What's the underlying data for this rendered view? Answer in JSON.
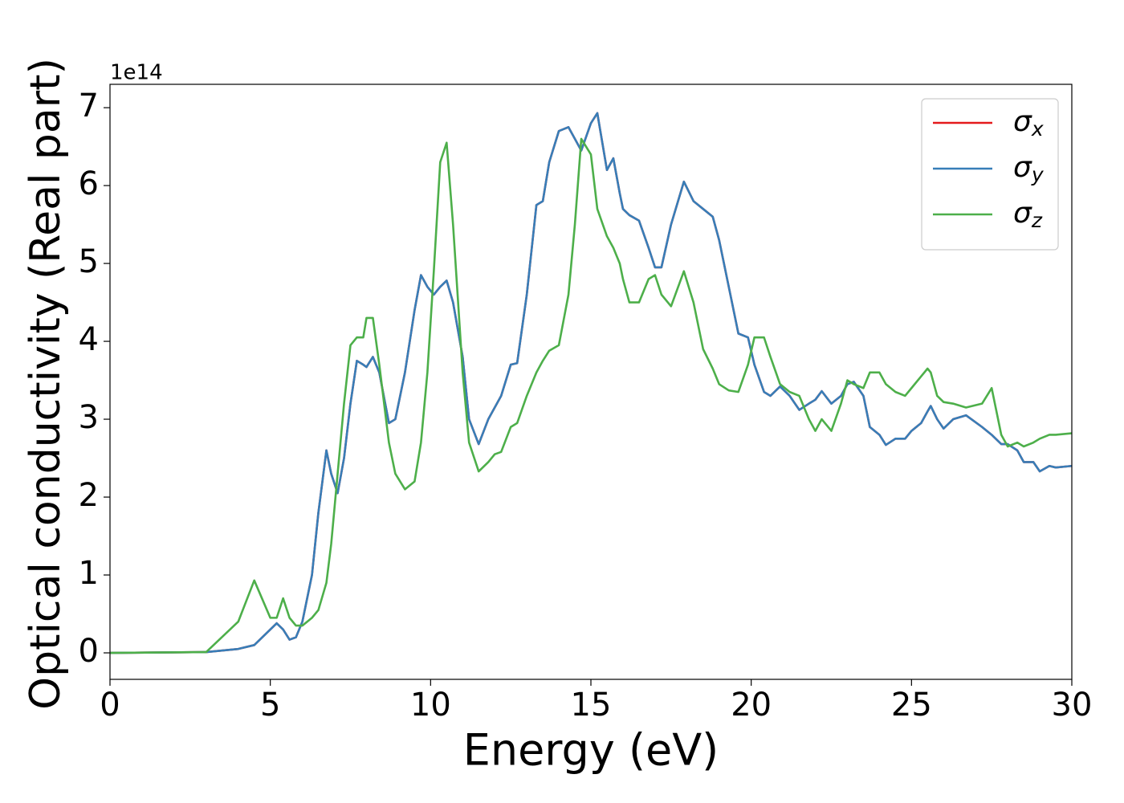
{
  "chart_data": {
    "type": "line",
    "xlabel": "Energy (eV)",
    "ylabel": "Optical conductivity (Real part)",
    "y_offset_label": "1e14",
    "xlim": [
      0,
      30
    ],
    "xticks": [
      0,
      5,
      10,
      15,
      20,
      25,
      30
    ],
    "ylim": [
      -0.34,
      7.3
    ],
    "yticks": [
      0,
      1,
      2,
      3,
      4,
      5,
      6,
      7
    ],
    "grid": false,
    "legend": "upper right",
    "x": [
      0,
      3,
      4,
      4.5,
      5,
      5.2,
      5.4,
      5.6,
      5.8,
      6,
      6.3,
      6.5,
      6.75,
      6.9,
      7.1,
      7.3,
      7.5,
      7.7,
      7.9,
      8.0,
      8.2,
      8.4,
      8.7,
      8.9,
      9.2,
      9.5,
      9.7,
      9.9,
      10.1,
      10.3,
      10.5,
      10.7,
      11,
      11.2,
      11.5,
      11.8,
      12,
      12.2,
      12.5,
      12.7,
      13,
      13.3,
      13.5,
      13.7,
      14,
      14.3,
      14.5,
      14.7,
      15,
      15.2,
      15.5,
      15.7,
      15.9,
      16,
      16.2,
      16.5,
      16.8,
      17,
      17.2,
      17.5,
      17.9,
      18.2,
      18.5,
      18.8,
      19,
      19.3,
      19.6,
      19.9,
      20.1,
      20.4,
      20.6,
      20.9,
      21.2,
      21.5,
      21.8,
      22,
      22.2,
      22.5,
      22.8,
      23,
      23.2,
      23.5,
      23.7,
      24,
      24.2,
      24.5,
      24.8,
      25,
      25.3,
      25.5,
      25.6,
      25.8,
      26,
      26.3,
      26.7,
      27.2,
      27.5,
      27.8,
      28,
      28.3,
      28.5,
      28.8,
      29,
      29.3,
      29.5,
      30
    ],
    "series": [
      {
        "name": "σx",
        "color": "#e41a1c",
        "values": [
          0,
          0.01,
          0.05,
          0.1,
          0.3,
          0.38,
          0.3,
          0.17,
          0.2,
          0.4,
          1.0,
          1.8,
          2.6,
          2.3,
          2.05,
          2.5,
          3.2,
          3.75,
          3.7,
          3.67,
          3.8,
          3.6,
          2.95,
          3.0,
          3.6,
          4.4,
          4.85,
          4.7,
          4.6,
          4.7,
          4.78,
          4.5,
          3.8,
          3.0,
          2.68,
          3.0,
          3.15,
          3.3,
          3.7,
          3.72,
          4.6,
          5.75,
          5.8,
          6.3,
          6.7,
          6.75,
          6.6,
          6.45,
          6.8,
          6.93,
          6.2,
          6.35,
          5.9,
          5.7,
          5.62,
          5.55,
          5.2,
          4.95,
          4.95,
          5.5,
          6.05,
          5.8,
          5.7,
          5.6,
          5.3,
          4.7,
          4.1,
          4.05,
          3.7,
          3.35,
          3.3,
          3.42,
          3.3,
          3.12,
          3.2,
          3.25,
          3.36,
          3.2,
          3.3,
          3.45,
          3.48,
          3.3,
          2.9,
          2.8,
          2.67,
          2.75,
          2.75,
          2.85,
          2.95,
          3.1,
          3.17,
          3.0,
          2.88,
          3.0,
          3.05,
          2.9,
          2.8,
          2.68,
          2.68,
          2.6,
          2.45,
          2.45,
          2.33,
          2.4,
          2.38,
          2.4
        ]
      },
      {
        "name": "σy",
        "color": "#377eb8",
        "values": [
          0,
          0.01,
          0.05,
          0.1,
          0.3,
          0.38,
          0.3,
          0.17,
          0.2,
          0.4,
          1.0,
          1.8,
          2.6,
          2.3,
          2.05,
          2.5,
          3.2,
          3.75,
          3.7,
          3.67,
          3.8,
          3.6,
          2.95,
          3.0,
          3.6,
          4.4,
          4.85,
          4.7,
          4.6,
          4.7,
          4.78,
          4.5,
          3.8,
          3.0,
          2.68,
          3.0,
          3.15,
          3.3,
          3.7,
          3.72,
          4.6,
          5.75,
          5.8,
          6.3,
          6.7,
          6.75,
          6.6,
          6.45,
          6.8,
          6.93,
          6.2,
          6.35,
          5.9,
          5.7,
          5.62,
          5.55,
          5.2,
          4.95,
          4.95,
          5.5,
          6.05,
          5.8,
          5.7,
          5.6,
          5.3,
          4.7,
          4.1,
          4.05,
          3.7,
          3.35,
          3.3,
          3.42,
          3.3,
          3.12,
          3.2,
          3.25,
          3.36,
          3.2,
          3.3,
          3.45,
          3.48,
          3.3,
          2.9,
          2.8,
          2.67,
          2.75,
          2.75,
          2.85,
          2.95,
          3.1,
          3.17,
          3.0,
          2.88,
          3.0,
          3.05,
          2.9,
          2.8,
          2.68,
          2.68,
          2.6,
          2.45,
          2.45,
          2.33,
          2.4,
          2.38,
          2.4
        ]
      },
      {
        "name": "σz",
        "color": "#4daf4a",
        "values": [
          0,
          0.01,
          0.4,
          0.93,
          0.45,
          0.45,
          0.7,
          0.45,
          0.35,
          0.35,
          0.45,
          0.55,
          0.9,
          1.4,
          2.3,
          3.2,
          3.95,
          4.05,
          4.05,
          4.3,
          4.3,
          3.7,
          2.7,
          2.3,
          2.1,
          2.2,
          2.7,
          3.6,
          4.9,
          6.3,
          6.55,
          5.5,
          3.6,
          2.7,
          2.33,
          2.45,
          2.55,
          2.58,
          2.9,
          2.95,
          3.3,
          3.6,
          3.75,
          3.88,
          3.95,
          4.6,
          5.5,
          6.6,
          6.4,
          5.7,
          5.35,
          5.2,
          5.0,
          4.8,
          4.5,
          4.5,
          4.8,
          4.85,
          4.6,
          4.45,
          4.9,
          4.5,
          3.9,
          3.65,
          3.45,
          3.37,
          3.35,
          3.7,
          4.05,
          4.05,
          3.8,
          3.45,
          3.35,
          3.3,
          3.0,
          2.85,
          3.0,
          2.85,
          3.2,
          3.5,
          3.45,
          3.4,
          3.6,
          3.6,
          3.45,
          3.35,
          3.3,
          3.4,
          3.55,
          3.65,
          3.6,
          3.3,
          3.22,
          3.2,
          3.15,
          3.2,
          3.4,
          2.8,
          2.65,
          2.7,
          2.65,
          2.7,
          2.75,
          2.8,
          2.8,
          2.82
        ]
      }
    ]
  }
}
